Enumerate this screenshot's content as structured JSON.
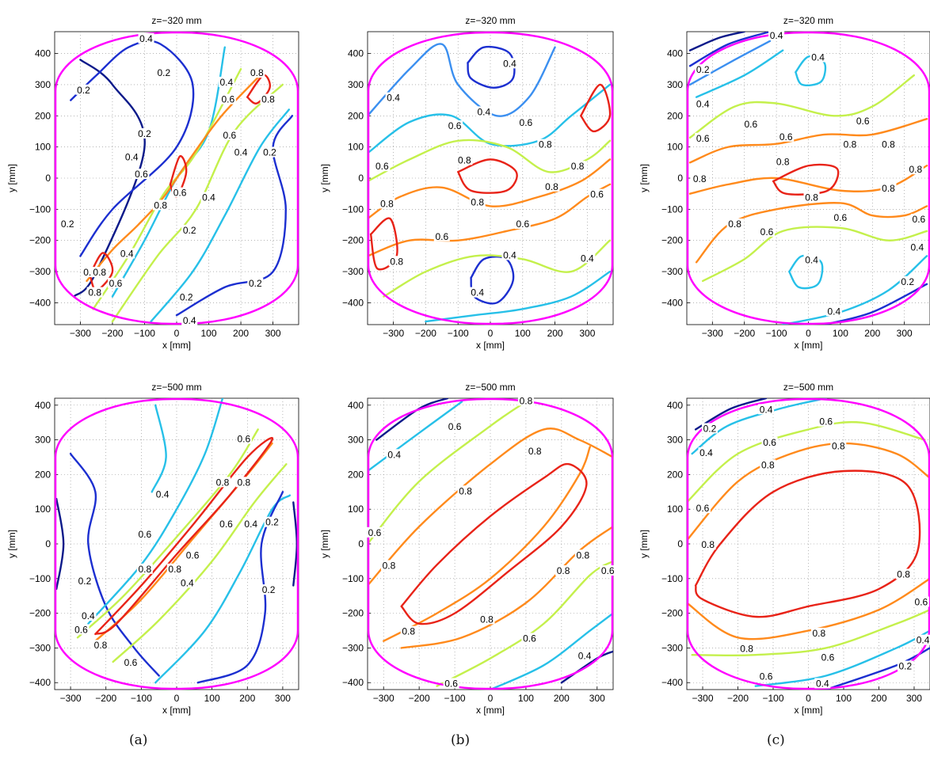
{
  "captions": [
    "(a)",
    "(b)",
    "(c)"
  ],
  "colors": {
    "boundary": "#ff00ff",
    "grid": "#888888",
    "levels": {
      "0.2": "#1c2fd0",
      "0.4": "#27c0e8",
      "0.6": "#c4f04c",
      "0.8": "#ff8a1c",
      "peak": "#e82318",
      "deep": "#0c1a8a",
      "mid": "#3b8ff0"
    }
  },
  "chart_data": [
    {
      "type": "contour",
      "panel": "a-top",
      "title": "z=−320 mm",
      "xlabel": "x [mm]",
      "ylabel": "y [mm]",
      "xlim": [
        -380,
        380
      ],
      "ylim": [
        -470,
        470
      ],
      "xticks": [
        -300,
        -200,
        -100,
        0,
        100,
        200,
        300
      ],
      "yticks": [
        -400,
        -300,
        -200,
        -100,
        0,
        100,
        200,
        300,
        400
      ],
      "tick_labels_x": [
        "−300",
        "−200",
        "−100",
        "0",
        "100",
        "200",
        "300"
      ],
      "tick_labels_y": [
        "−400",
        "−300",
        "−200",
        "−100",
        "0",
        "100",
        "200",
        "300",
        "400"
      ],
      "grid": true,
      "contour_levels": [
        0.2,
        0.4,
        0.6,
        0.8
      ],
      "contour_labels": [
        {
          "text": "0.4",
          "x": -95,
          "y": 445
        },
        {
          "text": "0.2",
          "x": -40,
          "y": 335
        },
        {
          "text": "0.4",
          "x": 155,
          "y": 305
        },
        {
          "text": "0.8",
          "x": 250,
          "y": 335
        },
        {
          "text": "0.2",
          "x": -290,
          "y": 280
        },
        {
          "text": "0.6",
          "x": 160,
          "y": 250
        },
        {
          "text": "0.8",
          "x": 285,
          "y": 250
        },
        {
          "text": "0.2",
          "x": -100,
          "y": 140
        },
        {
          "text": "0.6",
          "x": 165,
          "y": 135
        },
        {
          "text": "0.4",
          "x": -140,
          "y": 65
        },
        {
          "text": "0.4",
          "x": 200,
          "y": 80
        },
        {
          "text": "0.2",
          "x": 290,
          "y": 80
        },
        {
          "text": "0.6",
          "x": -110,
          "y": 10
        },
        {
          "text": "0.6",
          "x": 10,
          "y": -50
        },
        {
          "text": "0.4",
          "x": 100,
          "y": -65
        },
        {
          "text": "0.8",
          "x": -50,
          "y": -90
        },
        {
          "text": "0.2",
          "x": -340,
          "y": -150
        },
        {
          "text": "0.2",
          "x": 40,
          "y": -170
        },
        {
          "text": "0.4",
          "x": -155,
          "y": -245
        },
        {
          "text": "0.6",
          "x": -270,
          "y": -305
        },
        {
          "text": "0.8",
          "x": -240,
          "y": -305
        },
        {
          "text": "0.6",
          "x": -190,
          "y": -340
        },
        {
          "text": "0.8",
          "x": -255,
          "y": -370
        },
        {
          "text": "0.2",
          "x": 245,
          "y": -340
        },
        {
          "text": "0.2",
          "x": 30,
          "y": -385
        },
        {
          "text": "0.4",
          "x": 40,
          "y": -460
        }
      ]
    },
    {
      "type": "contour",
      "panel": "b-top",
      "title": "z=−320 mm",
      "xlabel": "x [mm]",
      "ylabel": "y [mm]",
      "xlim": [
        -380,
        380
      ],
      "ylim": [
        -470,
        470
      ],
      "xticks": [
        -300,
        -200,
        -100,
        0,
        100,
        200,
        300
      ],
      "yticks": [
        -400,
        -300,
        -200,
        -100,
        0,
        100,
        200,
        300,
        400
      ],
      "tick_labels_x": [
        "−300",
        "−200",
        "−100",
        "0",
        "100",
        "200",
        "300"
      ],
      "tick_labels_y": [
        "−400",
        "−300",
        "−200",
        "−100",
        "0",
        "100",
        "200",
        "300",
        "400"
      ],
      "grid": true,
      "contour_levels": [
        0.4,
        0.6,
        0.8
      ],
      "contour_labels": [
        {
          "text": "0.4",
          "x": 60,
          "y": 365
        },
        {
          "text": "0.4",
          "x": -300,
          "y": 255
        },
        {
          "text": "0.4",
          "x": -20,
          "y": 210
        },
        {
          "text": "0.6",
          "x": 110,
          "y": 175
        },
        {
          "text": "0.6",
          "x": -110,
          "y": 165
        },
        {
          "text": "0.8",
          "x": 170,
          "y": 105
        },
        {
          "text": "0.6",
          "x": -335,
          "y": 35
        },
        {
          "text": "0.8",
          "x": -80,
          "y": 55
        },
        {
          "text": "0.8",
          "x": 270,
          "y": 35
        },
        {
          "text": "0.8",
          "x": 190,
          "y": -30
        },
        {
          "text": "0.6",
          "x": 330,
          "y": -55
        },
        {
          "text": "0.8",
          "x": -320,
          "y": -85
        },
        {
          "text": "0.8",
          "x": -40,
          "y": -80
        },
        {
          "text": "0.6",
          "x": 100,
          "y": -150
        },
        {
          "text": "0.6",
          "x": -150,
          "y": -190
        },
        {
          "text": "0.4",
          "x": 60,
          "y": -250
        },
        {
          "text": "0.8",
          "x": -290,
          "y": -270
        },
        {
          "text": "0.4",
          "x": 300,
          "y": -260
        },
        {
          "text": "0.4",
          "x": -40,
          "y": -370
        }
      ]
    },
    {
      "type": "contour",
      "panel": "c-top",
      "title": "z=−320 mm",
      "xlabel": "x [mm]",
      "ylabel": "y [mm]",
      "xlim": [
        -380,
        380
      ],
      "ylim": [
        -470,
        470
      ],
      "xticks": [
        -300,
        -200,
        -100,
        0,
        100,
        200,
        300
      ],
      "yticks": [
        -400,
        -300,
        -200,
        -100,
        0,
        100,
        200,
        300,
        400
      ],
      "tick_labels_x": [
        "−300",
        "−200",
        "−100",
        "0",
        "100",
        "200",
        "300"
      ],
      "tick_labels_y": [
        "−400",
        "−300",
        "−200",
        "−100",
        "0",
        "100",
        "200",
        "300",
        "400"
      ],
      "grid": true,
      "contour_levels": [
        0.2,
        0.4,
        0.6,
        0.8
      ],
      "contour_labels": [
        {
          "text": "0.4",
          "x": -100,
          "y": 455
        },
        {
          "text": "0.4",
          "x": 30,
          "y": 385
        },
        {
          "text": "0.2",
          "x": -330,
          "y": 345
        },
        {
          "text": "0.4",
          "x": -330,
          "y": 235
        },
        {
          "text": "0.6",
          "x": 170,
          "y": 180
        },
        {
          "text": "0.6",
          "x": -180,
          "y": 170
        },
        {
          "text": "0.6",
          "x": -70,
          "y": 130
        },
        {
          "text": "0.6",
          "x": -330,
          "y": 125
        },
        {
          "text": "0.8",
          "x": 130,
          "y": 105
        },
        {
          "text": "0.8",
          "x": 250,
          "y": 105
        },
        {
          "text": "0.8",
          "x": -80,
          "y": 50
        },
        {
          "text": "0.8",
          "x": 335,
          "y": 25
        },
        {
          "text": "0.8",
          "x": -340,
          "y": -5
        },
        {
          "text": "0.8",
          "x": 250,
          "y": -35
        },
        {
          "text": "0.8",
          "x": 10,
          "y": -65
        },
        {
          "text": "0.6",
          "x": 100,
          "y": -130
        },
        {
          "text": "0.8",
          "x": -230,
          "y": -150
        },
        {
          "text": "0.6",
          "x": 345,
          "y": -135
        },
        {
          "text": "0.6",
          "x": -130,
          "y": -175
        },
        {
          "text": "0.4",
          "x": 10,
          "y": -265
        },
        {
          "text": "0.4",
          "x": 340,
          "y": -225
        },
        {
          "text": "0.2",
          "x": 310,
          "y": -335
        },
        {
          "text": "0.4",
          "x": 80,
          "y": -430
        }
      ]
    },
    {
      "type": "contour",
      "panel": "a-bottom",
      "title": "z=−500 mm",
      "xlabel": "x [mm]",
      "ylabel": "y [mm]",
      "xlim": [
        -345,
        345
      ],
      "ylim": [
        -420,
        420
      ],
      "xticks": [
        -300,
        -200,
        -100,
        0,
        100,
        200,
        300
      ],
      "yticks": [
        -400,
        -300,
        -200,
        -100,
        0,
        100,
        200,
        300,
        400
      ],
      "tick_labels_x": [
        "−300",
        "−200",
        "−100",
        "0",
        "100",
        "200",
        "300"
      ],
      "tick_labels_y": [
        "−400",
        "−300",
        "−200",
        "−100",
        "0",
        "100",
        "200",
        "300",
        "400"
      ],
      "grid": true,
      "contour_levels": [
        0.2,
        0.4,
        0.6,
        0.8
      ],
      "contour_labels": [
        {
          "text": "0.6",
          "x": 190,
          "y": 300
        },
        {
          "text": "0.8",
          "x": 130,
          "y": 175
        },
        {
          "text": "0.8",
          "x": 190,
          "y": 175
        },
        {
          "text": "0.4",
          "x": -40,
          "y": 140
        },
        {
          "text": "0.2",
          "x": 270,
          "y": 60
        },
        {
          "text": "0.6",
          "x": 140,
          "y": 55
        },
        {
          "text": "0.4",
          "x": 210,
          "y": 55
        },
        {
          "text": "0.6",
          "x": -90,
          "y": 25
        },
        {
          "text": "0.6",
          "x": 45,
          "y": -35
        },
        {
          "text": "0.8",
          "x": -90,
          "y": -75
        },
        {
          "text": "0.8",
          "x": -5,
          "y": -75
        },
        {
          "text": "0.4",
          "x": 30,
          "y": -115
        },
        {
          "text": "0.2",
          "x": -260,
          "y": -110
        },
        {
          "text": "0.2",
          "x": 260,
          "y": -135
        },
        {
          "text": "0.4",
          "x": -250,
          "y": -210
        },
        {
          "text": "0.6",
          "x": -270,
          "y": -250
        },
        {
          "text": "0.8",
          "x": -215,
          "y": -295
        },
        {
          "text": "0.6",
          "x": -130,
          "y": -345
        }
      ]
    },
    {
      "type": "contour",
      "panel": "b-bottom",
      "title": "z=−500 mm",
      "xlabel": "x [mm]",
      "ylabel": "y [mm]",
      "xlim": [
        -345,
        345
      ],
      "ylim": [
        -420,
        420
      ],
      "xticks": [
        -300,
        -200,
        -100,
        0,
        100,
        200,
        300
      ],
      "yticks": [
        -400,
        -300,
        -200,
        -100,
        0,
        100,
        200,
        300,
        400
      ],
      "tick_labels_x": [
        "−300",
        "−200",
        "−100",
        "0",
        "100",
        "200",
        "300"
      ],
      "tick_labels_y": [
        "−400",
        "−300",
        "−200",
        "−100",
        "0",
        "100",
        "200",
        "300",
        "400"
      ],
      "grid": true,
      "contour_levels": [
        0.4,
        0.6,
        0.8
      ],
      "contour_labels": [
        {
          "text": "0.8",
          "x": 100,
          "y": 410
        },
        {
          "text": "0.6",
          "x": -100,
          "y": 335
        },
        {
          "text": "0.4",
          "x": -270,
          "y": 255
        },
        {
          "text": "0.8",
          "x": 125,
          "y": 265
        },
        {
          "text": "0.8",
          "x": -70,
          "y": 150
        },
        {
          "text": "0.6",
          "x": -325,
          "y": 30
        },
        {
          "text": "0.8",
          "x": -285,
          "y": -65
        },
        {
          "text": "0.8",
          "x": 260,
          "y": -35
        },
        {
          "text": "0.6",
          "x": 330,
          "y": -80
        },
        {
          "text": "0.8",
          "x": 205,
          "y": -80
        },
        {
          "text": "0.8",
          "x": -10,
          "y": -220
        },
        {
          "text": "0.8",
          "x": -230,
          "y": -255
        },
        {
          "text": "0.6",
          "x": 110,
          "y": -275
        },
        {
          "text": "0.4",
          "x": 265,
          "y": -325
        },
        {
          "text": "0.6",
          "x": -110,
          "y": -405
        }
      ]
    },
    {
      "type": "contour",
      "panel": "c-bottom",
      "title": "z=−500 mm",
      "xlabel": "x [mm]",
      "ylabel": "y [mm]",
      "xlim": [
        -345,
        345
      ],
      "ylim": [
        -420,
        420
      ],
      "xticks": [
        -300,
        -200,
        -100,
        0,
        100,
        200,
        300
      ],
      "yticks": [
        -400,
        -300,
        -200,
        -100,
        0,
        100,
        200,
        300,
        400
      ],
      "tick_labels_x": [
        "−300",
        "−200",
        "−100",
        "0",
        "100",
        "200",
        "300"
      ],
      "tick_labels_y": [
        "−400",
        "−300",
        "−200",
        "−100",
        "0",
        "100",
        "200",
        "300",
        "400"
      ],
      "grid": true,
      "contour_levels": [
        0.2,
        0.4,
        0.6,
        0.8
      ],
      "contour_labels": [
        {
          "text": "0.4",
          "x": -120,
          "y": 385
        },
        {
          "text": "0.6",
          "x": 50,
          "y": 350
        },
        {
          "text": "0.2",
          "x": -280,
          "y": 330
        },
        {
          "text": "0.6",
          "x": -110,
          "y": 290
        },
        {
          "text": "0.8",
          "x": 85,
          "y": 280
        },
        {
          "text": "0.4",
          "x": -290,
          "y": 260
        },
        {
          "text": "0.8",
          "x": -115,
          "y": 225
        },
        {
          "text": "0.6",
          "x": -300,
          "y": 100
        },
        {
          "text": "0.8",
          "x": -285,
          "y": -5
        },
        {
          "text": "0.8",
          "x": 270,
          "y": -90
        },
        {
          "text": "0.6",
          "x": 320,
          "y": -170
        },
        {
          "text": "0.8",
          "x": 30,
          "y": -260
        },
        {
          "text": "0.8",
          "x": -175,
          "y": -305
        },
        {
          "text": "0.4",
          "x": 325,
          "y": -280
        },
        {
          "text": "0.6",
          "x": 55,
          "y": -330
        },
        {
          "text": "0.2",
          "x": 275,
          "y": -355
        },
        {
          "text": "0.6",
          "x": -120,
          "y": -385
        },
        {
          "text": "0.4",
          "x": 40,
          "y": -405
        }
      ]
    }
  ]
}
